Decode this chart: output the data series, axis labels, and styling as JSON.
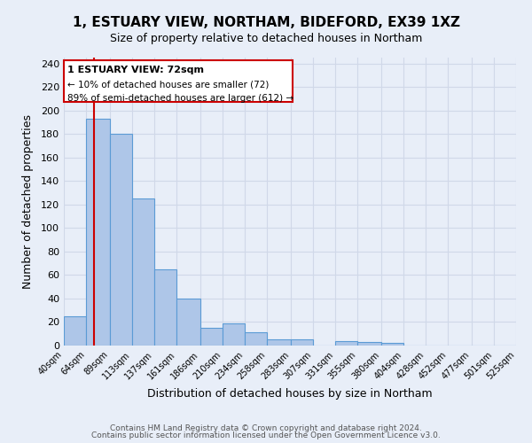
{
  "title": "1, ESTUARY VIEW, NORTHAM, BIDEFORD, EX39 1XZ",
  "subtitle": "Size of property relative to detached houses in Northam",
  "xlabel": "Distribution of detached houses by size in Northam",
  "ylabel": "Number of detached properties",
  "bin_edges": [
    40,
    64,
    89,
    113,
    137,
    161,
    186,
    210,
    234,
    258,
    283,
    307,
    331,
    355,
    380,
    404,
    428,
    452,
    477,
    501,
    525
  ],
  "bar_heights": [
    25,
    193,
    180,
    125,
    65,
    40,
    15,
    19,
    11,
    5,
    5,
    0,
    4,
    3,
    2,
    0,
    0,
    0,
    0,
    0
  ],
  "bar_color": "#aec6e8",
  "bar_edge_color": "#5b9bd5",
  "grid_color": "#d0d8e8",
  "background_color": "#e8eef8",
  "property_line_x": 72,
  "property_line_color": "#cc0000",
  "annotation_title": "1 ESTUARY VIEW: 72sqm",
  "annotation_line1": "← 10% of detached houses are smaller (72)",
  "annotation_line2": "89% of semi-detached houses are larger (612) →",
  "annotation_box_color": "#ffffff",
  "annotation_border_color": "#cc0000",
  "ylim": [
    0,
    245
  ],
  "yticks": [
    0,
    20,
    40,
    60,
    80,
    100,
    120,
    140,
    160,
    180,
    200,
    220,
    240
  ],
  "footer_line1": "Contains HM Land Registry data © Crown copyright and database right 2024.",
  "footer_line2": "Contains public sector information licensed under the Open Government Licence v3.0."
}
